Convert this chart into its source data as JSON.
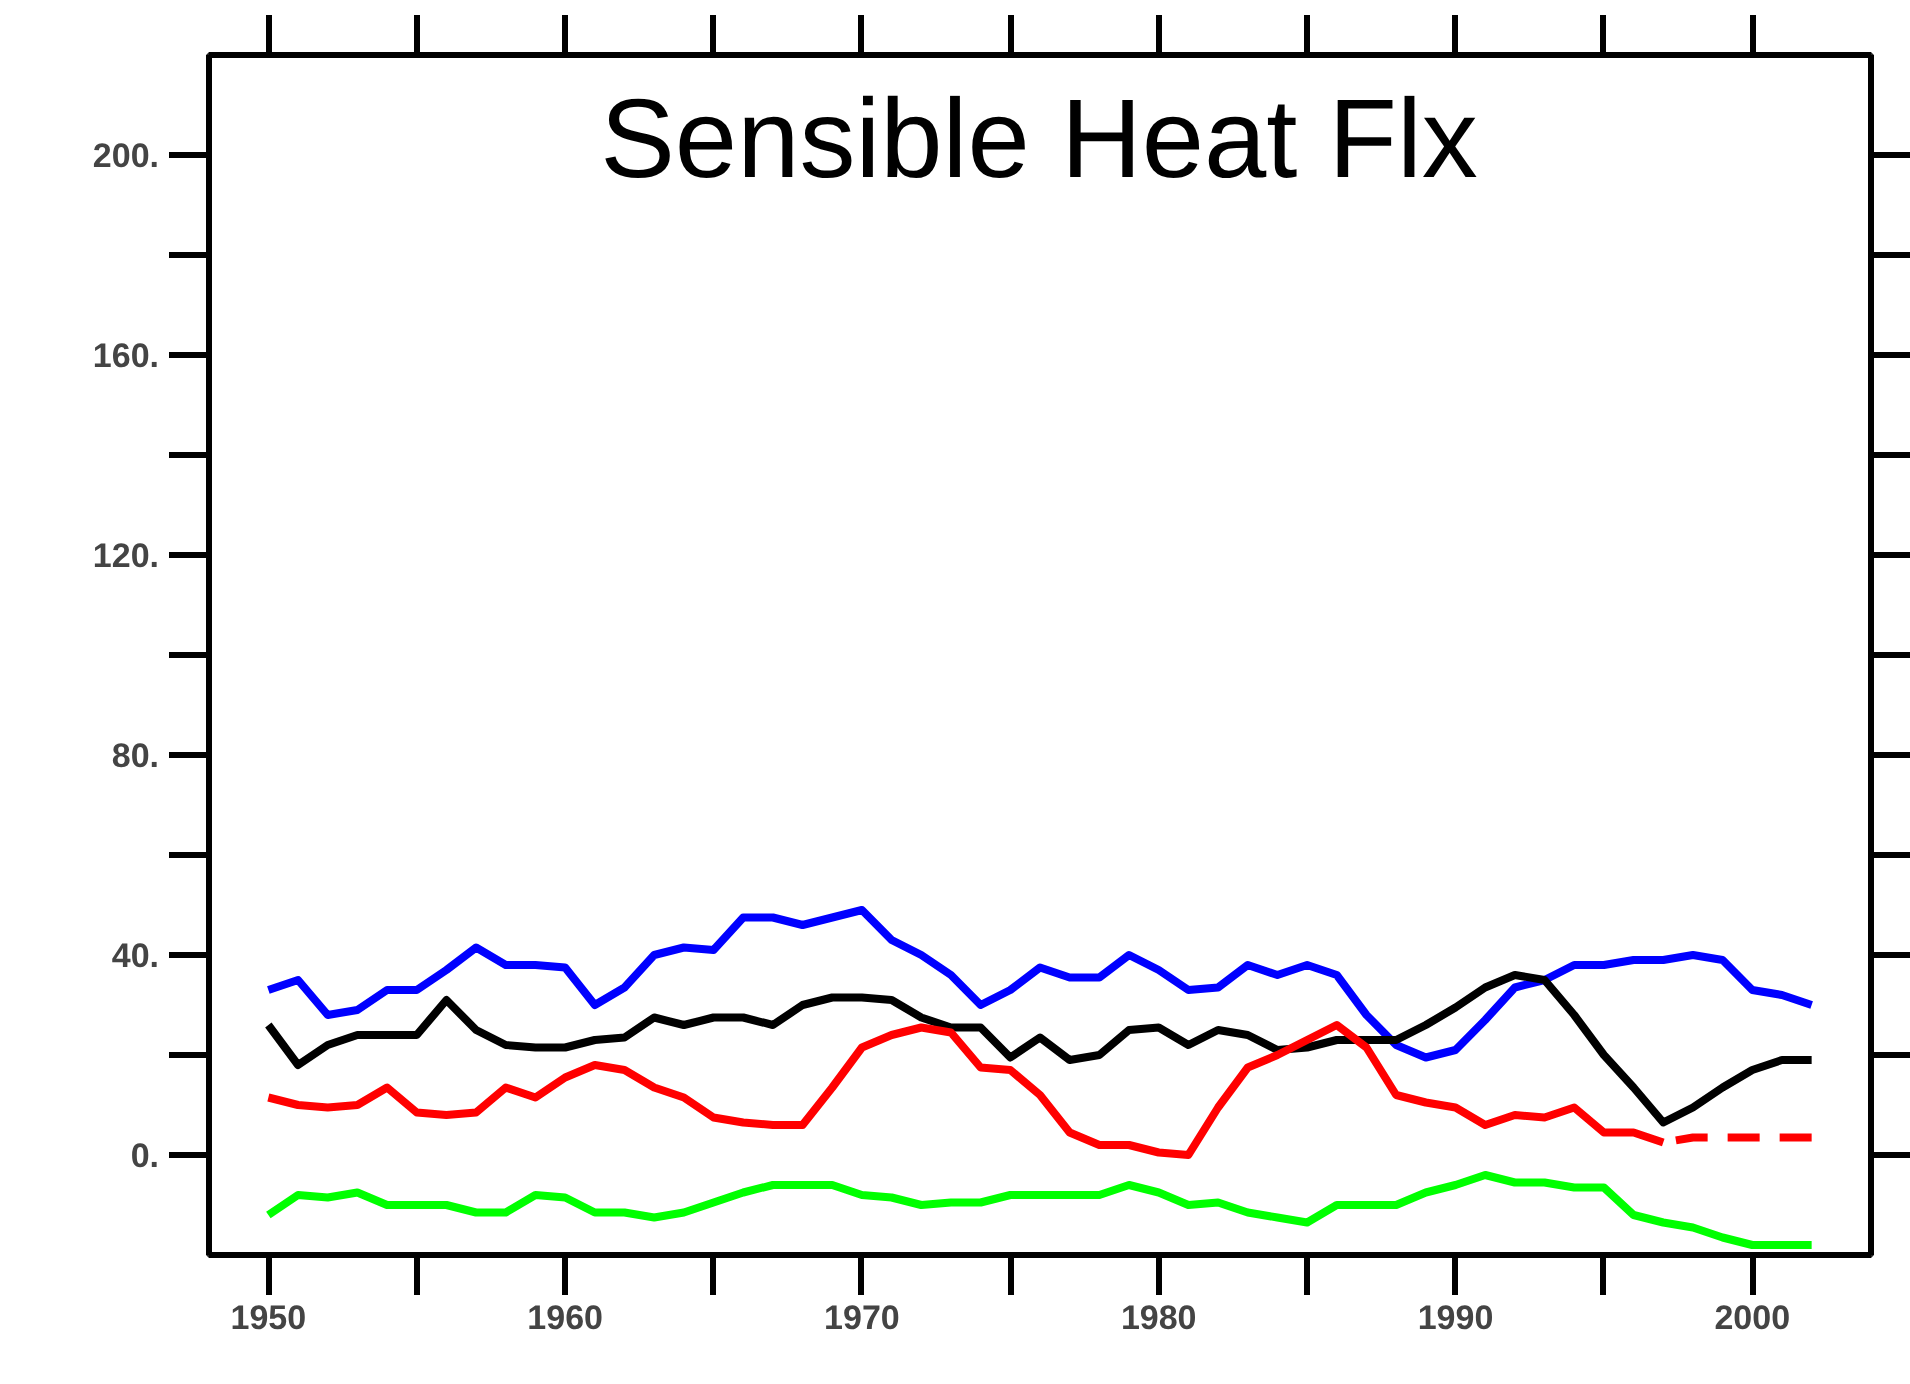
{
  "chart_data": {
    "type": "line",
    "title": "Sensible Heat Flx",
    "x": [
      1950,
      1951,
      1952,
      1953,
      1954,
      1955,
      1956,
      1957,
      1958,
      1959,
      1960,
      1961,
      1962,
      1963,
      1964,
      1965,
      1966,
      1967,
      1968,
      1969,
      1970,
      1971,
      1972,
      1973,
      1974,
      1975,
      1976,
      1977,
      1978,
      1979,
      1980,
      1981,
      1982,
      1983,
      1984,
      1985,
      1986,
      1987,
      1988,
      1989,
      1990,
      1991,
      1992,
      1993,
      1994,
      1995,
      1996,
      1997,
      1998,
      1999,
      2000,
      2001,
      2002
    ],
    "series": [
      {
        "color": "#0000ff",
        "values": [
          33,
          35,
          28,
          29,
          33,
          33,
          37,
          41.5,
          38,
          38,
          37.5,
          30,
          33.5,
          40,
          41.5,
          41,
          47.5,
          47.5,
          46,
          47.5,
          49,
          43,
          40,
          36,
          30,
          33,
          37.5,
          35.5,
          35.5,
          40,
          37,
          33,
          33.5,
          38,
          36,
          38,
          36,
          28,
          22,
          19.5,
          21,
          27,
          33.5,
          35,
          38,
          38,
          39,
          39,
          40,
          39,
          33,
          32,
          30
        ]
      },
      {
        "color": "#000000",
        "values": [
          26,
          18,
          22,
          24,
          24,
          24,
          31,
          25,
          22,
          21.5,
          21.5,
          23,
          23.5,
          27.5,
          26,
          27.5,
          27.5,
          26,
          30,
          31.5,
          31.5,
          31,
          27.5,
          25.5,
          25.5,
          19.5,
          23.5,
          19,
          20,
          25,
          25.5,
          22,
          25,
          24,
          21,
          21.5,
          23,
          23,
          23,
          26,
          29.5,
          33.5,
          36,
          35,
          28,
          20,
          13.5,
          6.5,
          9.5,
          13.5,
          17,
          19,
          19
        ]
      },
      {
        "color": "#ff0000",
        "values": [
          11.5,
          10,
          9.5,
          10,
          13.5,
          8.5,
          8,
          8.5,
          13.5,
          11.5,
          15.5,
          18,
          17,
          13.5,
          11.5,
          7.5,
          6.5,
          6,
          6,
          13.5,
          21.5,
          24,
          25.5,
          24.5,
          17.5,
          17,
          12,
          4.5,
          2,
          2,
          0.5,
          0,
          9.5,
          17.5,
          20,
          23,
          26,
          21.5,
          12,
          10.5,
          9.5,
          6,
          8,
          7.5,
          9.5,
          4.5,
          4.5,
          2.5,
          null,
          null,
          null,
          null,
          null
        ]
      },
      {
        "color": "#ff0000",
        "line_style": "dashed",
        "values": [
          null,
          null,
          null,
          null,
          null,
          null,
          null,
          null,
          null,
          null,
          null,
          null,
          null,
          null,
          null,
          null,
          null,
          null,
          null,
          null,
          null,
          null,
          null,
          null,
          null,
          null,
          null,
          null,
          null,
          null,
          null,
          null,
          null,
          null,
          null,
          null,
          null,
          null,
          null,
          null,
          null,
          null,
          null,
          null,
          null,
          null,
          null,
          2.5,
          3.5,
          3.5,
          3.5,
          3.5,
          3.5
        ]
      },
      {
        "color": "#00ff00",
        "values": [
          -12,
          -8,
          -8.5,
          -7.5,
          -10,
          -10,
          -10,
          -11.5,
          -11.5,
          -8,
          -8.5,
          -11.5,
          -11.5,
          -12.5,
          -11.5,
          -9.5,
          -7.5,
          -6,
          -6,
          -6,
          -8,
          -8.5,
          -10,
          -9.5,
          -9.5,
          -8,
          -8,
          -8,
          -8,
          -6,
          -7.5,
          -10,
          -9.5,
          -11.5,
          -12.5,
          -13.5,
          -10,
          -10,
          -10,
          -7.5,
          -6,
          -4,
          -5.5,
          -5.5,
          -6.5,
          -6.5,
          -12,
          -13.5,
          -14.5,
          -16.5,
          -18,
          -18,
          -18
        ]
      }
    ],
    "xlim": [
      1948,
      2004
    ],
    "ylim": [
      -20,
      220
    ],
    "xticks": [
      1950,
      1960,
      1970,
      1980,
      1990,
      2000
    ],
    "yticks": [
      {
        "value": 0,
        "label": "0."
      },
      {
        "value": 40,
        "label": "40."
      },
      {
        "value": 80,
        "label": "80."
      },
      {
        "value": 120,
        "label": "120."
      },
      {
        "value": 160,
        "label": "160."
      },
      {
        "value": 200,
        "label": "200."
      }
    ],
    "grid": false,
    "marker": "none",
    "line_style": "solid"
  }
}
